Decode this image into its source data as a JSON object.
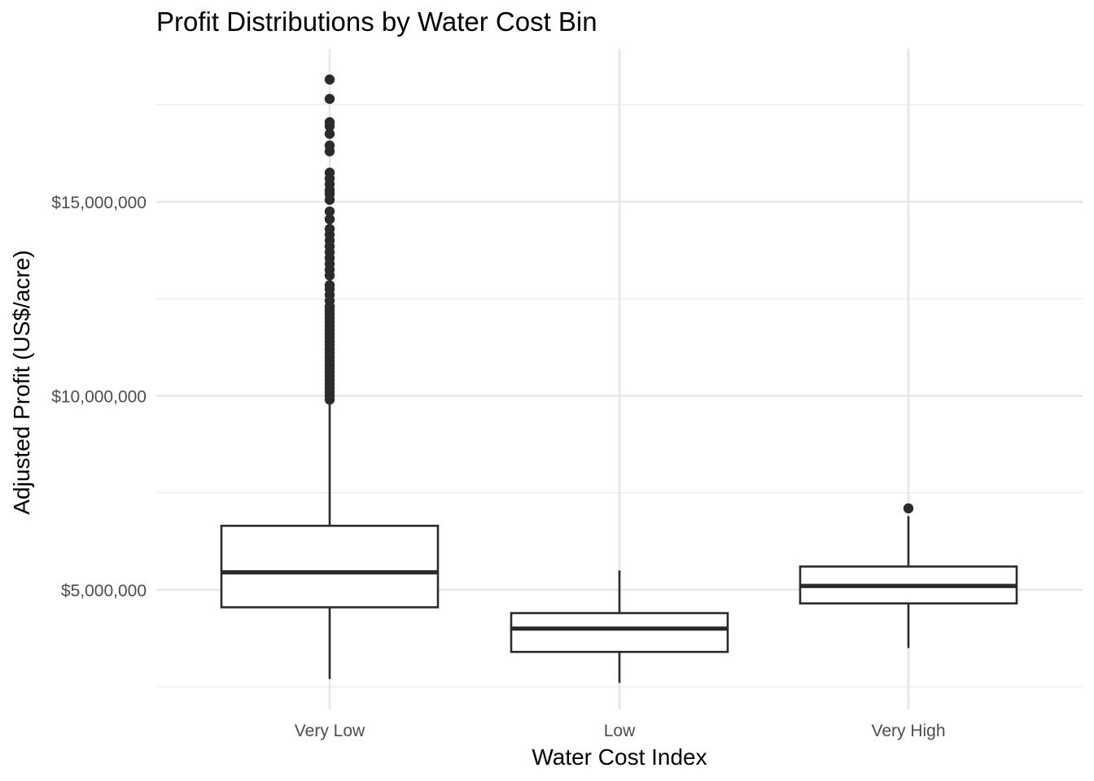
{
  "chart_data": {
    "type": "boxplot",
    "title": "Profit Distributions by Water Cost Bin",
    "xlabel": "Water Cost Index",
    "ylabel": "Adjusted Profit (US$/acre)",
    "categories": [
      "Very Low",
      "Low",
      "Very High"
    ],
    "ylim": [
      2250000,
      18750000
    ],
    "yticks": [
      5000000,
      10000000,
      15000000
    ],
    "ytick_labels": [
      "$5,000,000",
      "$10,000,000",
      "$15,000,000"
    ],
    "grid": true,
    "legend": "none",
    "boxes": [
      {
        "category": "Very Low",
        "whisker_low": 2700000,
        "q1": 4550000,
        "median": 5450000,
        "q3": 6650000,
        "whisker_high": 9850000,
        "outliers": [
          9900000,
          10000000,
          10100000,
          10200000,
          10300000,
          10400000,
          10500000,
          10600000,
          10700000,
          10800000,
          10900000,
          11000000,
          11100000,
          11200000,
          11300000,
          11400000,
          11500000,
          11600000,
          11700000,
          11800000,
          11900000,
          12000000,
          12100000,
          12200000,
          12300000,
          12450000,
          12600000,
          12750000,
          12850000,
          13100000,
          13250000,
          13400000,
          13550000,
          13700000,
          13850000,
          14000000,
          14150000,
          14300000,
          14550000,
          14750000,
          15050000,
          15200000,
          15300000,
          15450000,
          15600000,
          15750000,
          16300000,
          16450000,
          16750000,
          16950000,
          17050000,
          17650000,
          18150000
        ]
      },
      {
        "category": "Low",
        "whisker_low": 2600000,
        "q1": 3400000,
        "median": 4000000,
        "q3": 4400000,
        "whisker_high": 5500000,
        "outliers": []
      },
      {
        "category": "Very High",
        "whisker_low": 3500000,
        "q1": 4650000,
        "median": 5100000,
        "q3": 5600000,
        "whisker_high": 6900000,
        "outliers": [
          7100000
        ]
      }
    ]
  }
}
